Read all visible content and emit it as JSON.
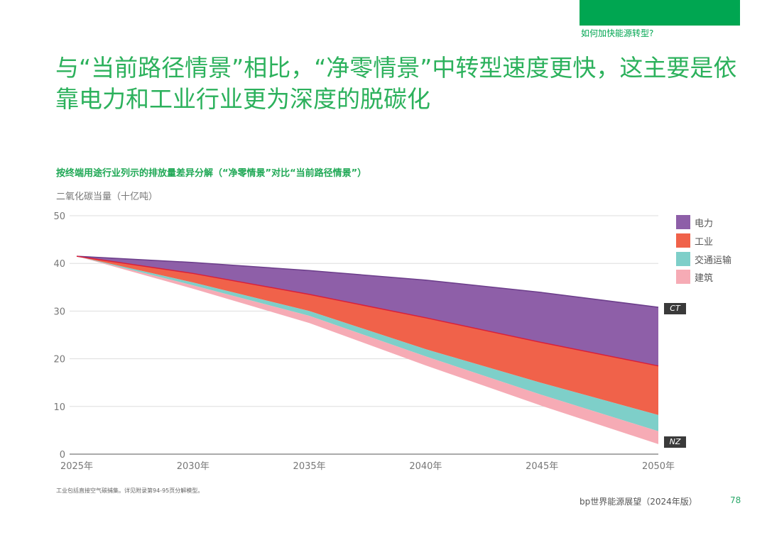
{
  "header": {
    "section": "如何加快能源转型?",
    "title": "与“当前路径情景”相比，“净零情景”中转型速度更快，这主要是依靠电力和工业行业更为深度的脱碳化"
  },
  "footer": {
    "footnote": "工业包括直接空气碳捕集。详见附录第94-95页分解模型。",
    "source": "bp世界能源展望（2024年版）",
    "page": "78"
  },
  "colors": {
    "brand_green": "#00a651",
    "power": "#8e5fa8",
    "industry": "#f0624a",
    "transport": "#7ecfc9",
    "buildings": "#f6abb5"
  },
  "chart_data": {
    "type": "area",
    "title": "按终端用途行业列示的排放量差异分解（“净零情景”对比“当前路径情景”）",
    "ylabel": "二氧化碳当量（十亿吨）",
    "xlabel": "",
    "ylim": [
      0,
      50
    ],
    "yticks": [
      0,
      10,
      20,
      30,
      40,
      50
    ],
    "x": [
      2025,
      2030,
      2035,
      2040,
      2045,
      2050
    ],
    "xtick_labels": [
      "2025年",
      "2030年",
      "2035年",
      "2040年",
      "2045年",
      "2050年"
    ],
    "grid": true,
    "legend_position": "right",
    "ct_line": {
      "name": "CT",
      "values": [
        41.5,
        40.2,
        38.5,
        36.5,
        33.9,
        30.8
      ]
    },
    "nz_line": {
      "name": "NZ",
      "values": [
        41.5,
        34.7,
        27.5,
        18.6,
        10.1,
        2.1
      ]
    },
    "series": [
      {
        "name": "电力",
        "values": [
          0,
          2.3,
          5.0,
          7.9,
          10.5,
          12.3
        ]
      },
      {
        "name": "工业",
        "values": [
          0,
          1.9,
          3.5,
          6.6,
          8.5,
          10.3
        ]
      },
      {
        "name": "交通运输",
        "values": [
          0,
          0.6,
          1.0,
          1.5,
          2.5,
          3.4
        ]
      },
      {
        "name": "建筑",
        "values": [
          0,
          0.7,
          1.5,
          1.9,
          2.3,
          2.7
        ]
      }
    ]
  }
}
